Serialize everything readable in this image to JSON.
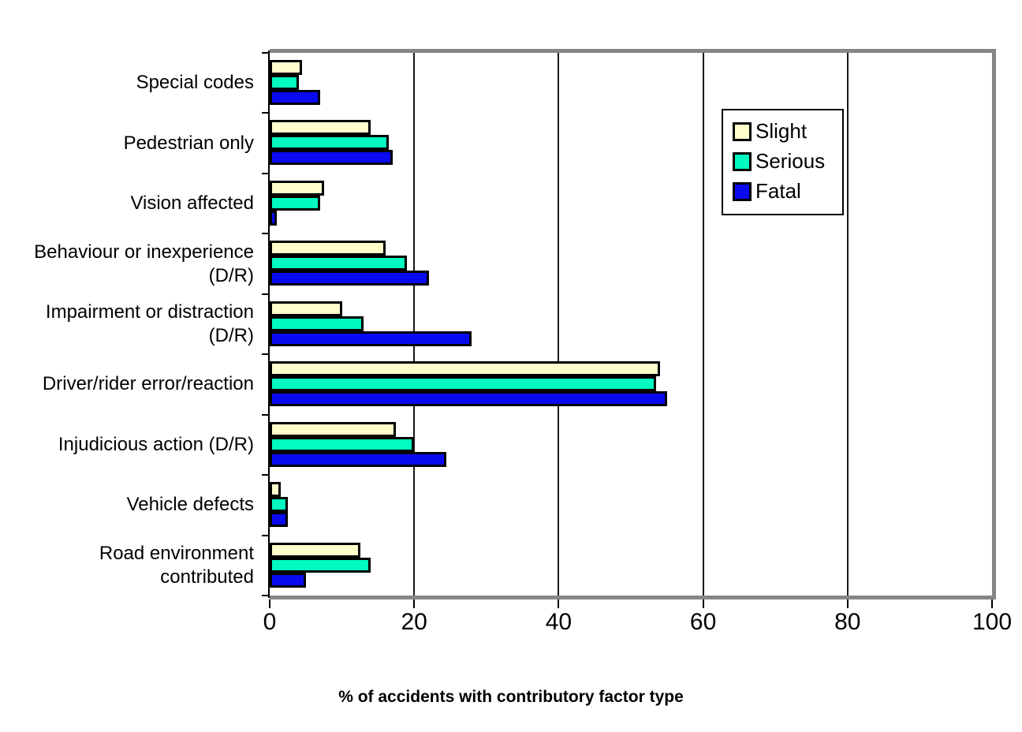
{
  "chart_data": {
    "type": "bar",
    "orientation": "horizontal",
    "xlabel": "% of accidents with contributory factor type",
    "xlim": [
      0,
      100
    ],
    "x_ticks": [
      0,
      20,
      40,
      60,
      80,
      100
    ],
    "x_tick_labels": [
      "0",
      "20",
      "40",
      "60",
      "80",
      "100"
    ],
    "grid_values": [
      20,
      40,
      60,
      80
    ],
    "grid": "vertical",
    "legend_position": "upper-right-inside",
    "categories": [
      "Special codes",
      "Pedestrian only",
      "Vision affected",
      "Behaviour or inexperience (D/R)",
      "Impairment or distraction (D/R)",
      "Driver/rider error/reaction",
      "Injudicious action (D/R)",
      "Vehicle defects",
      "Road environment contributed"
    ],
    "category_label_lines": [
      [
        "Special codes"
      ],
      [
        "Pedestrian only"
      ],
      [
        "Vision affected"
      ],
      [
        "Behaviour or inexperience",
        "(D/R)"
      ],
      [
        "Impairment or distraction",
        "(D/R)"
      ],
      [
        "Driver/rider error/reaction"
      ],
      [
        "Injudicious action (D/R)"
      ],
      [
        "Vehicle defects"
      ],
      [
        "Road environment",
        "contributed"
      ]
    ],
    "series": [
      {
        "name": "Slight",
        "color": "#FFFFCC",
        "values": [
          4.5,
          14,
          7.5,
          16,
          10,
          54,
          17.5,
          1.5,
          12.5
        ]
      },
      {
        "name": "Serious",
        "color": "#00FAC0",
        "values": [
          4,
          16.5,
          7,
          19,
          13,
          53.5,
          20,
          2.5,
          14
        ]
      },
      {
        "name": "Fatal",
        "color": "#0A0AF0",
        "values": [
          7,
          17,
          1,
          22,
          28,
          55,
          24.5,
          2.5,
          5
        ]
      }
    ]
  },
  "colors": {
    "plot_border": "#868686",
    "axis": "#000000",
    "gridline": "#1a1a1a",
    "bar_border": "#000000",
    "background": "#ffffff"
  }
}
